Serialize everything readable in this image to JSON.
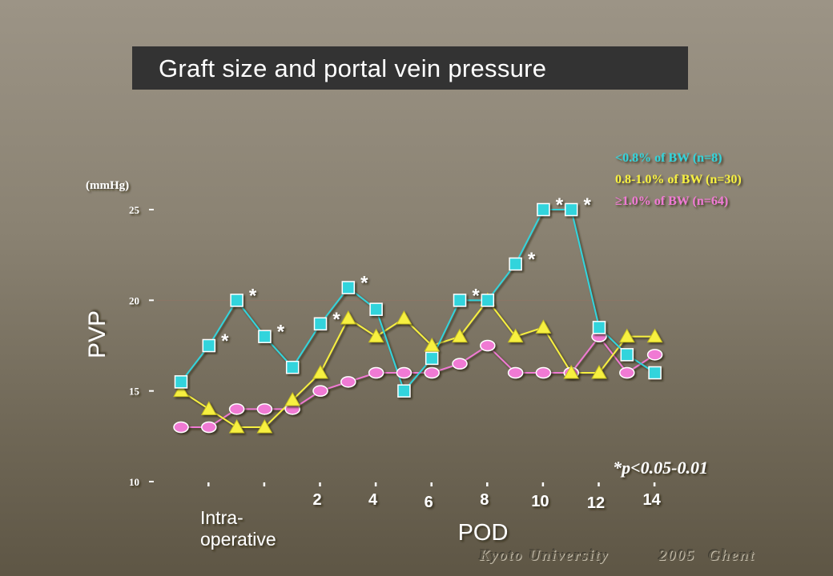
{
  "title": "Graft size and portal vein pressure",
  "footer": {
    "institution": "Kyoto University",
    "year": "2005",
    "city": "Ghent"
  },
  "chart_data": {
    "type": "line",
    "title": "Graft size and portal vein pressure",
    "ylabel": "PVP",
    "yunit": "(mmHg)",
    "xlabel": "POD",
    "ylim": [
      10,
      25
    ],
    "yticks": [
      10,
      15,
      20,
      25
    ],
    "x": [
      "Intra-operative",
      "",
      "",
      "",
      "",
      "2",
      "",
      "4",
      "",
      "6",
      "",
      "8",
      "",
      "10",
      "",
      "12",
      "",
      "14"
    ],
    "xtick_labels": [
      "2",
      "4",
      "6",
      "8",
      "10",
      "12",
      "14"
    ],
    "intraoperative_label": [
      "Intra-",
      "operative"
    ],
    "grid": false,
    "legend_position": "top-right",
    "annotation": "*p<0.05-0.01",
    "series": [
      {
        "name": "<0.8% of BW (n=8)",
        "color": "#33d4dc",
        "marker": "square",
        "values": [
          15.5,
          17.5,
          20,
          18,
          16.3,
          18.7,
          20.7,
          19.5,
          15,
          16.8,
          20,
          20,
          22,
          25,
          25,
          18.5,
          17,
          16
        ],
        "significant": [
          false,
          true,
          true,
          true,
          false,
          true,
          true,
          false,
          false,
          false,
          true,
          false,
          true,
          true,
          true,
          false,
          false,
          false
        ]
      },
      {
        "name": "0.8-1.0% of BW (n=30)",
        "color": "#f7f040",
        "marker": "triangle",
        "values": [
          15,
          14,
          13,
          13,
          14.5,
          16,
          19,
          18,
          19,
          17.5,
          18,
          20,
          18,
          18.5,
          16,
          16,
          18,
          18
        ]
      },
      {
        "name": "≥1.0% of BW (n=64)",
        "color": "#f07ad4",
        "marker": "circle",
        "values": [
          13,
          13,
          14,
          14,
          14,
          15,
          15.5,
          16,
          16,
          16,
          16.5,
          17.5,
          16,
          16,
          16,
          18,
          16,
          17
        ]
      }
    ]
  }
}
